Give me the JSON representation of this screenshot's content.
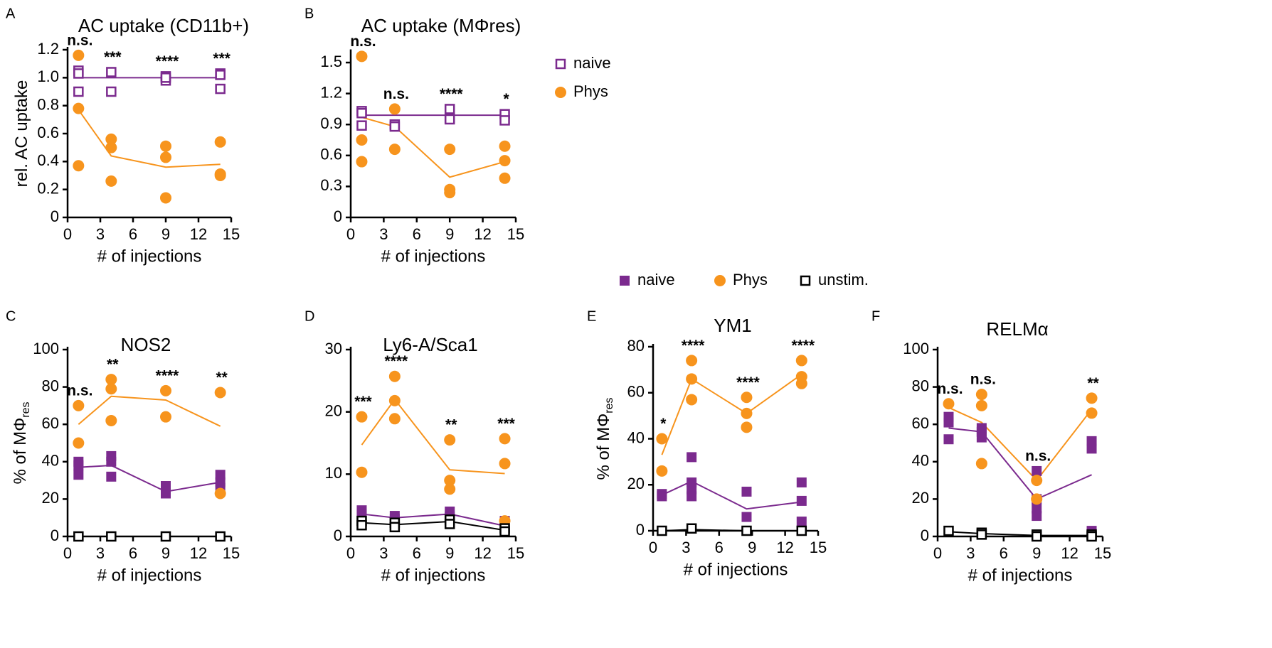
{
  "legends": [
    {
      "items": [
        {
          "name": "naive",
          "color": "#7b2a8e",
          "marker": "open-square"
        },
        {
          "name": "Phys",
          "color": "#f7941d",
          "marker": "circle"
        }
      ]
    },
    {
      "items": [
        {
          "name": "naive",
          "color": "#7b2a8e",
          "marker": "square"
        },
        {
          "name": "Phys",
          "color": "#f7941d",
          "marker": "circle"
        },
        {
          "name": "unstim.",
          "color": "#000000",
          "marker": "open-square"
        }
      ]
    }
  ],
  "chart_data": [
    {
      "type": "scatter",
      "panel": "A",
      "title": "AC uptake (CD11b+)",
      "ylabel": "rel. AC uptake",
      "xlabel": "# of injections",
      "xlim": [
        0,
        15
      ],
      "xticks": [
        0,
        3,
        6,
        9,
        12,
        15
      ],
      "ylim": [
        0,
        1.2
      ],
      "yticks": [
        0,
        0.2,
        0.4,
        0.6,
        0.8,
        {
          "value": 1,
          "label": "1.0"
        },
        1.2
      ],
      "series": [
        {
          "color": "#7b2a8e",
          "marker": "open-square",
          "x": [
            1,
            1,
            1,
            4,
            4,
            9,
            9,
            9,
            14,
            14,
            14
          ],
          "values": [
            1.05,
            1.03,
            0.9,
            1.04,
            0.9,
            1.01,
            0.98,
            1.0,
            1.03,
            0.92,
            1.02
          ],
          "line_x": [
            1,
            4,
            9,
            14
          ],
          "line_values": [
            1.0,
            1.0,
            1.0,
            1.0
          ]
        },
        {
          "color": "#f7941d",
          "marker": "circle",
          "x": [
            1,
            1,
            1,
            4,
            4,
            4,
            9,
            9,
            9,
            14,
            14,
            14
          ],
          "values": [
            1.16,
            0.78,
            0.37,
            0.56,
            0.5,
            0.26,
            0.51,
            0.43,
            0.14,
            0.54,
            0.31,
            0.3
          ],
          "line_x": [
            1,
            4,
            9,
            14
          ],
          "line_values": [
            0.77,
            0.44,
            0.36,
            0.38
          ]
        }
      ],
      "annotations": [
        {
          "x": 1,
          "text": "n.s."
        },
        {
          "x": 4,
          "text": "***"
        },
        {
          "x": 9,
          "text": "****"
        },
        {
          "x": 14,
          "text": "***"
        }
      ]
    },
    {
      "type": "scatter",
      "panel": "B",
      "title": "AC uptake (MΦres)",
      "xlabel": "# of injections",
      "xlim": [
        0,
        15
      ],
      "xticks": [
        0,
        3,
        6,
        9,
        12,
        15
      ],
      "ylim": [
        0,
        1.6
      ],
      "yticks": [
        0,
        0.3,
        0.6,
        0.9,
        1.2,
        1.5
      ],
      "series": [
        {
          "color": "#7b2a8e",
          "marker": "open-square",
          "x": [
            1,
            1,
            1,
            4,
            4,
            9,
            9,
            9,
            14,
            14
          ],
          "values": [
            1.03,
            1.01,
            0.89,
            0.9,
            0.88,
            1.05,
            0.96,
            0.95,
            1.0,
            0.94
          ],
          "line_x": [
            1,
            4,
            9,
            14
          ],
          "line_values": [
            0.99,
            0.99,
            0.99,
            0.99
          ]
        },
        {
          "color": "#f7941d",
          "marker": "circle",
          "x": [
            1,
            1,
            1,
            4,
            4,
            9,
            9,
            9,
            14,
            14,
            14
          ],
          "values": [
            1.56,
            0.75,
            0.54,
            1.05,
            0.66,
            0.66,
            0.27,
            0.24,
            0.69,
            0.55,
            0.38
          ],
          "line_x": [
            1,
            4,
            9,
            14
          ],
          "line_values": [
            0.97,
            0.88,
            0.39,
            0.54
          ]
        }
      ],
      "annotations": [
        {
          "x": 1,
          "text": "n.s."
        },
        {
          "x": 4,
          "text": "n.s."
        },
        {
          "x": 9,
          "text": "****"
        },
        {
          "x": 14,
          "text": "*"
        }
      ]
    },
    {
      "type": "scatter",
      "panel": "C",
      "title": "NOS2",
      "ylabel": "% of MΦ",
      "ylabel_sub": "res",
      "xlabel": "# of injections",
      "xlim": [
        0,
        15
      ],
      "xticks": [
        0,
        3,
        6,
        9,
        12,
        15
      ],
      "ylim": [
        0,
        100
      ],
      "yticks": [
        0,
        20,
        40,
        60,
        80,
        100
      ],
      "series": [
        {
          "color": "#7b2a8e",
          "marker": "square",
          "x": [
            1,
            1,
            1,
            4,
            4,
            4,
            9,
            9,
            9,
            14,
            14,
            14
          ],
          "values": [
            40,
            38,
            33,
            43,
            40,
            32,
            27,
            24,
            23,
            33,
            29,
            26
          ],
          "line_x": [
            1,
            4,
            9,
            14
          ],
          "line_values": [
            37,
            38,
            24,
            29
          ]
        },
        {
          "color": "#f7941d",
          "marker": "circle",
          "x": [
            1,
            1,
            4,
            4,
            4,
            9,
            9,
            14,
            14
          ],
          "values": [
            70,
            50,
            84,
            79,
            62,
            78,
            64,
            77,
            23
          ],
          "line_x": [
            1,
            4,
            9,
            14
          ],
          "line_values": [
            60,
            75,
            73,
            59
          ]
        },
        {
          "color": "#000000",
          "marker": "open-square",
          "x": [
            1,
            4,
            9,
            14
          ],
          "values": [
            0,
            0,
            0,
            0
          ],
          "line_x": [
            1,
            4,
            9,
            14
          ],
          "line_values": [
            0,
            0,
            0,
            0
          ]
        }
      ],
      "annotations": [
        {
          "x": 1,
          "text": "n.s."
        },
        {
          "x": 4,
          "text": "**"
        },
        {
          "x": 9,
          "text": "****"
        },
        {
          "x": 14,
          "text": "**"
        }
      ]
    },
    {
      "type": "scatter",
      "panel": "D",
      "title": "Ly6-A/Sca1",
      "xlabel": "# of injections",
      "xlim": [
        0,
        15
      ],
      "xticks": [
        0,
        3,
        6,
        9,
        12,
        15
      ],
      "ylim": [
        0,
        30
      ],
      "yticks": [
        0,
        10,
        20,
        30
      ],
      "series": [
        {
          "color": "#7b2a8e",
          "marker": "square",
          "x": [
            1,
            1,
            4,
            4,
            9,
            9,
            14,
            14,
            14
          ],
          "values": [
            4.2,
            3.5,
            3.3,
            2.8,
            4.0,
            3.2,
            2.5,
            1.8,
            1.2
          ],
          "line_x": [
            1,
            4,
            9,
            14
          ],
          "line_values": [
            3.6,
            3.0,
            3.6,
            1.7
          ]
        },
        {
          "color": "#f7941d",
          "marker": "circle",
          "x": [
            1,
            1,
            4,
            4,
            4,
            9,
            9,
            9,
            14,
            14,
            14
          ],
          "values": [
            19.2,
            10.3,
            25.7,
            21.8,
            18.9,
            15.5,
            9.0,
            7.6,
            15.7,
            11.7,
            2.5
          ],
          "line_x": [
            1,
            4,
            9,
            14
          ],
          "line_values": [
            14.7,
            22,
            10.7,
            10.1
          ]
        },
        {
          "color": "#000000",
          "marker": "open-square",
          "x": [
            1,
            1,
            4,
            4,
            9,
            9,
            14,
            14
          ],
          "values": [
            2.5,
            1.8,
            2.2,
            1.5,
            2.7,
            2.0,
            1.3,
            0.8
          ],
          "line_x": [
            1,
            4,
            9,
            14
          ],
          "line_values": [
            2.2,
            1.9,
            2.4,
            1.0
          ]
        }
      ],
      "annotations": [
        {
          "x": 1,
          "text": "***"
        },
        {
          "x": 4,
          "text": "****"
        },
        {
          "x": 9,
          "text": "**"
        },
        {
          "x": 14,
          "text": "***"
        }
      ]
    },
    {
      "type": "scatter",
      "panel": "E",
      "title": "YM1",
      "ylabel": "% of MΦ",
      "ylabel_sub": "res",
      "xlabel": "# of injections",
      "xlim": [
        0,
        15
      ],
      "xticks": [
        0,
        3,
        6,
        9,
        12,
        15
      ],
      "ylim": [
        0,
        80
      ],
      "yticks": [
        0,
        20,
        40,
        60,
        80
      ],
      "series": [
        {
          "color": "#7b2a8e",
          "marker": "square",
          "x": [
            0.8,
            0.8,
            3.5,
            3.5,
            3.5,
            3.5,
            8.5,
            8.5,
            13.5,
            13.5,
            13.5
          ],
          "values": [
            16,
            15,
            32,
            21,
            18,
            15,
            17,
            6,
            21,
            13,
            4
          ],
          "line_x": [
            0.8,
            3.5,
            8.5,
            13.5
          ],
          "line_values": [
            15.5,
            21.5,
            9.5,
            12.5
          ]
        },
        {
          "color": "#f7941d",
          "marker": "circle",
          "x": [
            0.8,
            0.8,
            3.5,
            3.5,
            3.5,
            8.5,
            8.5,
            8.5,
            13.5,
            13.5,
            13.5
          ],
          "values": [
            40,
            26,
            74,
            66,
            57,
            58,
            51,
            45,
            74,
            67,
            64
          ],
          "line_x": [
            0.8,
            3.5,
            8.5,
            13.5
          ],
          "line_values": [
            33,
            66,
            51,
            68
          ]
        },
        {
          "color": "#000000",
          "marker": "open-square",
          "x": [
            0.8,
            3.5,
            8.5,
            13.5
          ],
          "values": [
            0,
            1,
            0,
            0
          ],
          "line_x": [
            0.8,
            3.5,
            8.5,
            13.5
          ],
          "line_values": [
            0,
            0.5,
            0,
            0
          ]
        }
      ],
      "annotations": [
        {
          "x": 0.8,
          "text": "*"
        },
        {
          "x": 3.5,
          "text": "****"
        },
        {
          "x": 8.5,
          "text": "****"
        },
        {
          "x": 13.5,
          "text": "****"
        }
      ]
    },
    {
      "type": "scatter",
      "panel": "F",
      "title": "RELMα",
      "xlabel": "# of injections",
      "xlim": [
        0,
        15
      ],
      "xticks": [
        0,
        3,
        6,
        9,
        12,
        15
      ],
      "ylim": [
        0,
        100
      ],
      "yticks": [
        0,
        20,
        40,
        60,
        80,
        100
      ],
      "series": [
        {
          "color": "#7b2a8e",
          "marker": "square",
          "x": [
            1,
            1,
            1,
            4,
            4,
            4,
            9,
            9,
            9,
            9,
            14,
            14,
            14,
            14
          ],
          "values": [
            64,
            61,
            52,
            58,
            56,
            53,
            35,
            20,
            15,
            11,
            51,
            47,
            3,
            2
          ],
          "line_x": [
            1,
            4,
            9,
            14
          ],
          "line_values": [
            58,
            56,
            20,
            33
          ]
        },
        {
          "color": "#f7941d",
          "marker": "circle",
          "x": [
            1,
            4,
            4,
            4,
            9,
            9,
            14,
            14
          ],
          "values": [
            71,
            76,
            70,
            39,
            30,
            20,
            74,
            66
          ],
          "line_x": [
            1,
            4,
            9,
            14
          ],
          "line_values": [
            69,
            61,
            30,
            68
          ]
        },
        {
          "color": "#000000",
          "marker": "open-square",
          "x": [
            1,
            4,
            4,
            9,
            9,
            14,
            14
          ],
          "values": [
            3,
            2,
            1,
            1,
            0,
            1,
            0
          ],
          "line_x": [
            1,
            4,
            9,
            14
          ],
          "line_values": [
            2.5,
            1.5,
            0.5,
            0.5
          ]
        }
      ],
      "annotations": [
        {
          "x": 1,
          "text": "n.s."
        },
        {
          "x": 4,
          "text": "n.s."
        },
        {
          "x": 9,
          "text": "n.s."
        },
        {
          "x": 14,
          "text": "**"
        }
      ]
    }
  ]
}
